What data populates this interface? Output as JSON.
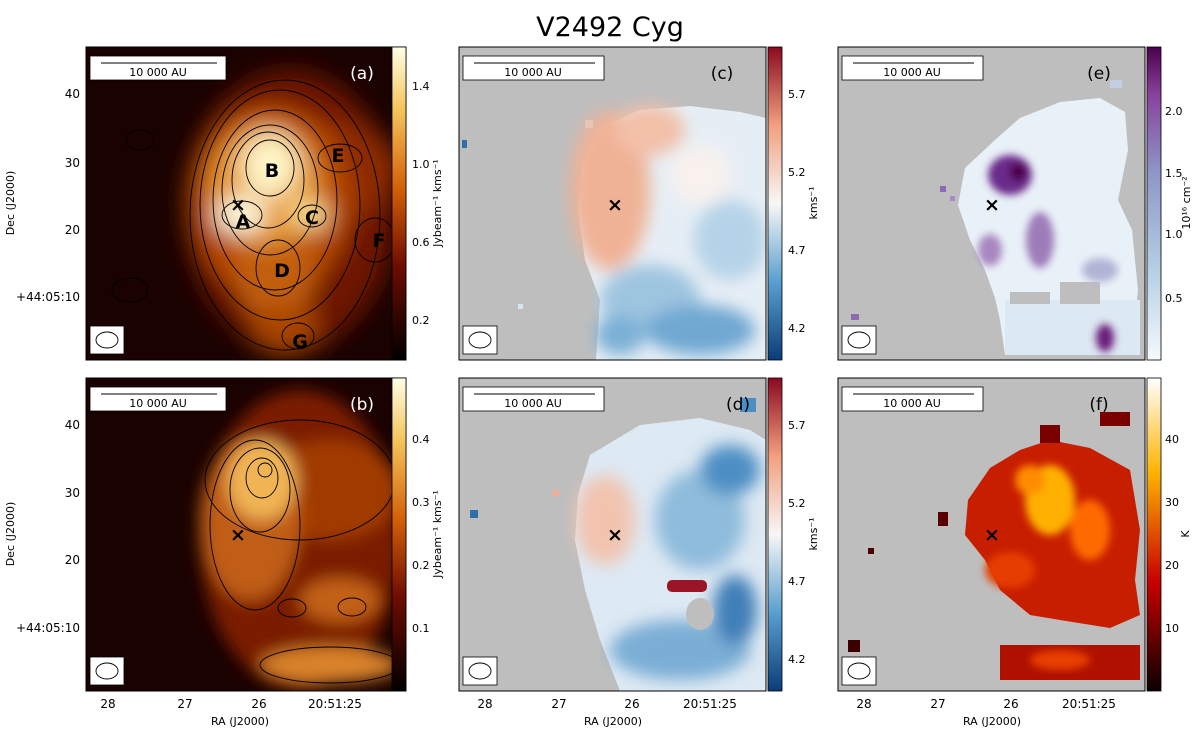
{
  "figure": {
    "title": "V2492 Cyg",
    "scale_bar_label": "10 000 AU",
    "xlabel": "RA (J2000)",
    "ylabel": "Dec (J2000)"
  },
  "chart_data": [
    {
      "panel": "(a)",
      "type": "heatmap",
      "colormap": "afmhot",
      "colorbar": {
        "label": "Jybeam⁻¹ kms⁻¹",
        "ticks": [
          "0.2",
          "0.6",
          "1.0",
          "1.4"
        ],
        "range": [
          0.0,
          1.6
        ]
      },
      "contours": true,
      "x_ticks": [],
      "y_ticks": [
        "40",
        "30",
        "20",
        "+44:05:10"
      ],
      "clumps": [
        "A",
        "B",
        "C",
        "D",
        "E",
        "F",
        "G"
      ],
      "marker": "×"
    },
    {
      "panel": "(b)",
      "type": "heatmap",
      "colormap": "afmhot",
      "colorbar": {
        "label": "Jybeam⁻¹ kms⁻¹",
        "ticks": [
          "0.1",
          "0.2",
          "0.3",
          "0.4"
        ],
        "range": [
          0.0,
          0.5
        ]
      },
      "contours": true,
      "x_ticks": [
        "28",
        "27",
        "26",
        "20:51:25"
      ],
      "y_ticks": [
        "40",
        "30",
        "20",
        "+44:05:10"
      ],
      "marker": "×"
    },
    {
      "panel": "(c)",
      "type": "heatmap",
      "colormap": "RdBu_r",
      "colorbar": {
        "label": "kms⁻¹",
        "ticks": [
          "4.2",
          "4.7",
          "5.2",
          "5.7"
        ],
        "range": [
          4.0,
          6.0
        ]
      },
      "x_ticks": [],
      "y_ticks": [],
      "marker": "×"
    },
    {
      "panel": "(d)",
      "type": "heatmap",
      "colormap": "RdBu_r",
      "colorbar": {
        "label": "kms⁻¹",
        "ticks": [
          "4.2",
          "4.7",
          "5.2",
          "5.7"
        ],
        "range": [
          4.0,
          6.0
        ]
      },
      "x_ticks": [
        "28",
        "27",
        "26",
        "20:51:25"
      ],
      "y_ticks": [],
      "marker": "×"
    },
    {
      "panel": "(e)",
      "type": "heatmap",
      "colormap": "BuPu",
      "colorbar": {
        "label": "10¹⁶ cm⁻²",
        "ticks": [
          "0.5",
          "1.0",
          "1.5",
          "2.0"
        ],
        "range": [
          0.0,
          2.4
        ]
      },
      "x_ticks": [],
      "y_ticks": [],
      "marker": "×"
    },
    {
      "panel": "(f)",
      "type": "heatmap",
      "colormap": "hot",
      "colorbar": {
        "label": "K",
        "ticks": [
          "10",
          "20",
          "30",
          "40"
        ],
        "range": [
          0,
          50
        ]
      },
      "x_ticks": [
        "28",
        "27",
        "26",
        "20:51:25"
      ],
      "y_ticks": [],
      "marker": "×"
    }
  ]
}
